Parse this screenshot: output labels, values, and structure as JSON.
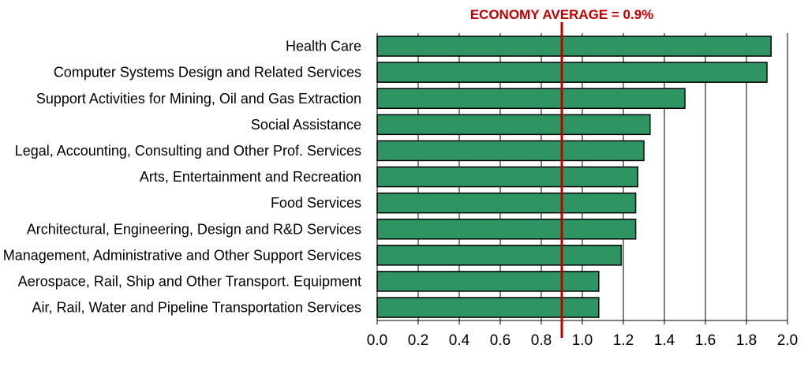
{
  "chart_data": {
    "type": "bar",
    "orientation": "horizontal",
    "categories": [
      "Health Care",
      "Computer Systems Design and Related Services",
      "Support Activities for Mining, Oil and Gas Extraction",
      "Social Assistance",
      "Legal, Accounting, Consulting and Other Prof. Services",
      "Arts, Entertainment and Recreation",
      "Food Services",
      "Architectural, Engineering, Design and R&D Services",
      "Management, Administrative and Other Support Services",
      "Aerospace, Rail, Ship and Other Transport. Equipment",
      "Air, Rail, Water and Pipeline Transportation Services"
    ],
    "values": [
      1.92,
      1.9,
      1.5,
      1.33,
      1.3,
      1.27,
      1.26,
      1.26,
      1.19,
      1.08,
      1.08
    ],
    "xlim": [
      0,
      2.0
    ],
    "x_ticks": [
      "0.0",
      "0.2",
      "0.4",
      "0.6",
      "0.8",
      "1.0",
      "1.2",
      "1.4",
      "1.6",
      "1.8",
      "2.0"
    ],
    "grid": "vertical",
    "reference_line": {
      "value": 0.9,
      "label": "ECONOMY AVERAGE = 0.9%"
    },
    "title": "",
    "xlabel": "",
    "ylabel": ""
  },
  "colors": {
    "bar": "#2e9562",
    "bar_outline": "#000000",
    "reference_line": "#c00000",
    "grid": "#000000"
  }
}
